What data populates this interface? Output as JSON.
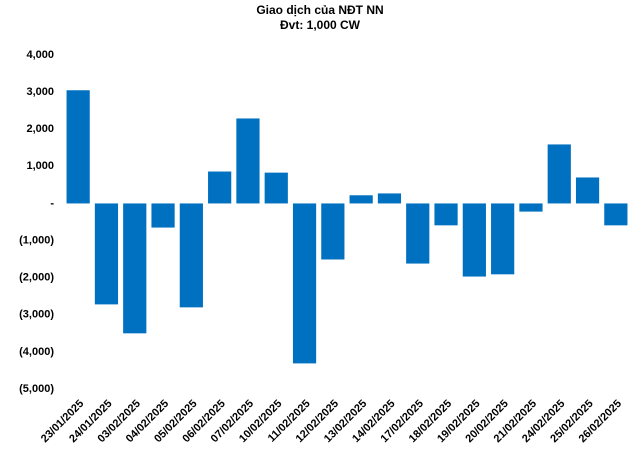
{
  "chart_data": {
    "type": "bar",
    "title": "Giao dịch của NĐT NN",
    "subtitle": "Đvt: 1,000 CW",
    "categories": [
      "23/01/2025",
      "24/01/2025",
      "03/02/2025",
      "04/02/2025",
      "05/02/2025",
      "06/02/2025",
      "07/02/2025",
      "10/02/2025",
      "11/02/2025",
      "12/02/2025",
      "13/02/2025",
      "14/02/2025",
      "17/02/2025",
      "18/02/2025",
      "19/02/2025",
      "20/02/2025",
      "21/02/2025",
      "24/02/2025",
      "25/02/2025",
      "26/02/2025"
    ],
    "values": [
      3050,
      -2720,
      -3500,
      -650,
      -2800,
      860,
      2290,
      830,
      -4310,
      -1510,
      220,
      270,
      -1620,
      -590,
      -1970,
      -1910,
      -220,
      1590,
      700,
      -590
    ],
    "color": "#0070c0",
    "ylim": [
      -5000,
      4000
    ],
    "yticks": [
      {
        "value": 4000,
        "label": "4,000"
      },
      {
        "value": 3000,
        "label": "3,000"
      },
      {
        "value": 2000,
        "label": "2,000"
      },
      {
        "value": 1000,
        "label": "1,000"
      },
      {
        "value": 0,
        "label": "-"
      },
      {
        "value": -1000,
        "label": "(1,000)"
      },
      {
        "value": -2000,
        "label": "(2,000)"
      },
      {
        "value": -3000,
        "label": "(3,000)"
      },
      {
        "value": -4000,
        "label": "(4,000)"
      },
      {
        "value": -5000,
        "label": "(5,000)"
      }
    ],
    "grid": false
  }
}
